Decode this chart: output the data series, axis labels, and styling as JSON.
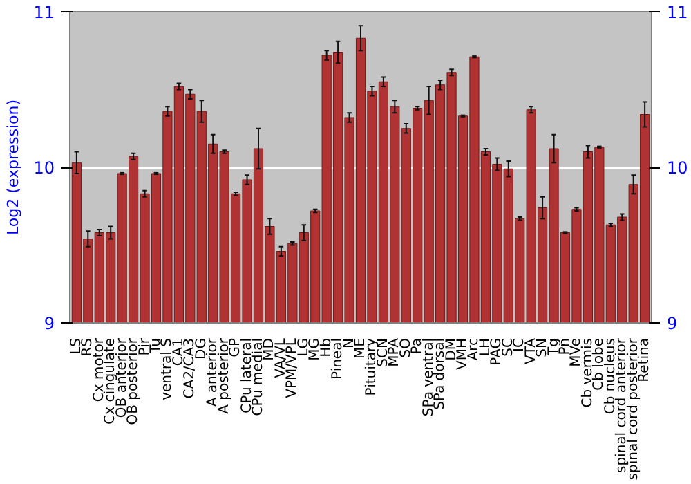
{
  "chart_data": {
    "type": "bar",
    "ylabel": "Log2 (expression)",
    "categories": [
      "LS",
      "RS",
      "Cx motor",
      "Cx cingulate",
      "OB anterior",
      "OB posterior",
      "Pir",
      "Tu",
      "ventral S",
      "CA1",
      "CA2/CA3",
      "DG",
      "A anterior",
      "A posterior",
      "GP",
      "CPu lateral",
      "CPu medial",
      "MD",
      "VA/VL",
      "VPM/VPL",
      "LG",
      "MG",
      "Hb",
      "Pineal",
      "N",
      "ME",
      "Pituitary",
      "SCN",
      "MPA",
      "SO",
      "Pa",
      "SPa ventral",
      "SPa dorsal",
      "DM",
      "VMH",
      "Arc",
      "LH",
      "PAG",
      "SC",
      "IC",
      "VTA",
      "SN",
      "Tg",
      "Pn",
      "MVe",
      "Cb vermis",
      "Cb lobe",
      "Cb nucleus",
      "spinal cord anterior",
      "spinal cord posterior",
      "Retina"
    ],
    "series": [
      {
        "color": "#b03232",
        "values": [
          10.03,
          9.54,
          9.58,
          9.58,
          9.96,
          10.07,
          9.83,
          9.96,
          10.36,
          10.52,
          10.47,
          10.36,
          10.15,
          10.1,
          9.83,
          9.92,
          10.12,
          9.62,
          9.46,
          9.51,
          9.58,
          9.72,
          10.72,
          10.74,
          10.32,
          10.83,
          10.49,
          10.55,
          10.39,
          10.25,
          10.38,
          10.43,
          10.53,
          10.61,
          10.33,
          10.71,
          10.1,
          10.02,
          9.99,
          9.67,
          10.37,
          9.74,
          10.12,
          9.58,
          9.73,
          10.1,
          10.13,
          9.63,
          9.68,
          9.89,
          10.34
        ],
        "errors": [
          0.07,
          0.05,
          0.02,
          0.04,
          0.005,
          0.02,
          0.02,
          0.005,
          0.03,
          0.02,
          0.03,
          0.07,
          0.06,
          0.01,
          0.01,
          0.03,
          0.13,
          0.05,
          0.03,
          0.01,
          0.05,
          0.01,
          0.03,
          0.07,
          0.03,
          0.08,
          0.03,
          0.03,
          0.04,
          0.03,
          0.01,
          0.09,
          0.03,
          0.02,
          0.005,
          0.005,
          0.02,
          0.04,
          0.05,
          0.01,
          0.02,
          0.07,
          0.09,
          0.005,
          0.01,
          0.04,
          0.005,
          0.01,
          0.02,
          0.06,
          0.08
        ]
      }
    ],
    "ylim": [
      9,
      11
    ],
    "yticks": [
      9,
      10,
      11
    ],
    "y2lim": [
      9,
      11
    ],
    "y2ticks": [
      9,
      10,
      11
    ],
    "grid": "y"
  }
}
